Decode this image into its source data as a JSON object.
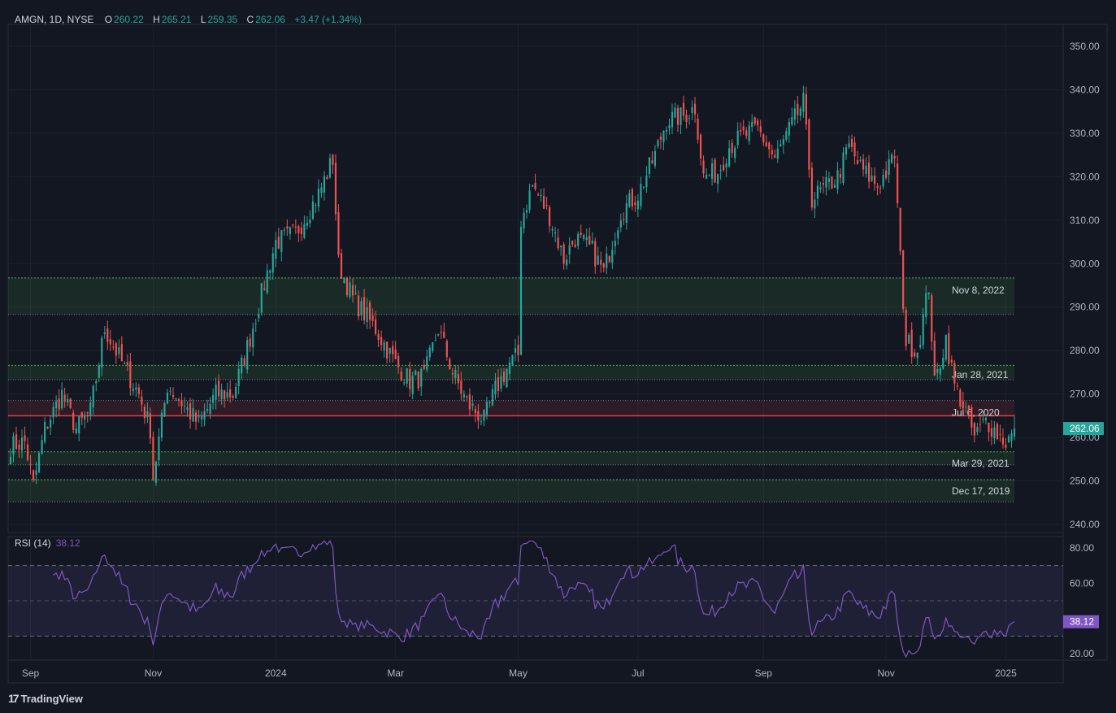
{
  "header": {
    "symbol": "AMGN, 1D, NYSE",
    "o_label": "O",
    "o_value": "260.22",
    "h_label": "H",
    "h_value": "265.21",
    "l_label": "L",
    "l_value": "259.35",
    "c_label": "C",
    "c_value": "262.06",
    "change": "+3.47 (+1.34%)"
  },
  "rsi_header": {
    "label": "RSI (14)",
    "value": "38.12"
  },
  "branding": {
    "logo_mark": "17",
    "name": "TradingView"
  },
  "colors": {
    "bg": "#131722",
    "up": "#26a69a",
    "down": "#ef5350",
    "rsi": "#7e57c2",
    "zone_fill": "#1b3a2c",
    "zone_line": "#4caf50",
    "red_line": "#f23645",
    "grid": "#1e222d"
  },
  "chart_data": [
    {
      "type": "candlestick",
      "ylim": [
        240,
        355
      ],
      "yticks": [
        "240.00",
        "250.00",
        "260.00",
        "270.00",
        "280.00",
        "290.00",
        "300.00",
        "310.00",
        "320.00",
        "330.00",
        "340.00",
        "350.00"
      ],
      "xticks": [
        {
          "label": "Sep",
          "idx": 7
        },
        {
          "label": "Nov",
          "idx": 50
        },
        {
          "label": "2024",
          "idx": 93
        },
        {
          "label": "Mar",
          "idx": 135
        },
        {
          "label": "May",
          "idx": 178
        },
        {
          "label": "Jul",
          "idx": 220
        },
        {
          "label": "Sep",
          "idx": 264
        },
        {
          "label": "Nov",
          "idx": 307
        },
        {
          "label": "2025",
          "idx": 349
        }
      ],
      "last_price": "262.06",
      "keypoints": [
        [
          0,
          258
        ],
        [
          5,
          259
        ],
        [
          8,
          249
        ],
        [
          12,
          262
        ],
        [
          18,
          270
        ],
        [
          23,
          262
        ],
        [
          28,
          266
        ],
        [
          33,
          285
        ],
        [
          40,
          276
        ],
        [
          45,
          270
        ],
        [
          49,
          262
        ],
        [
          50,
          251
        ],
        [
          55,
          272
        ],
        [
          60,
          268
        ],
        [
          66,
          263
        ],
        [
          72,
          270
        ],
        [
          78,
          270
        ],
        [
          84,
          283
        ],
        [
          88,
          293
        ],
        [
          93,
          305
        ],
        [
          100,
          307
        ],
        [
          108,
          316
        ],
        [
          113,
          324
        ],
        [
          115,
          300
        ],
        [
          120,
          292
        ],
        [
          128,
          285
        ],
        [
          135,
          277
        ],
        [
          140,
          273
        ],
        [
          145,
          274
        ],
        [
          150,
          285
        ],
        [
          155,
          275
        ],
        [
          160,
          268
        ],
        [
          166,
          264
        ],
        [
          170,
          271
        ],
        [
          175,
          277
        ],
        [
          178,
          279
        ],
        [
          179,
          310
        ],
        [
          183,
          318
        ],
        [
          189,
          311
        ],
        [
          194,
          301
        ],
        [
          198,
          306
        ],
        [
          204,
          303
        ],
        [
          208,
          298
        ],
        [
          214,
          312
        ],
        [
          220,
          316
        ],
        [
          226,
          325
        ],
        [
          230,
          333
        ],
        [
          236,
          334
        ],
        [
          240,
          336
        ],
        [
          243,
          320
        ],
        [
          248,
          321
        ],
        [
          252,
          327
        ],
        [
          256,
          329
        ],
        [
          262,
          331
        ],
        [
          268,
          324
        ],
        [
          274,
          332
        ],
        [
          278,
          337
        ],
        [
          281,
          315
        ],
        [
          285,
          317
        ],
        [
          290,
          320
        ],
        [
          294,
          327
        ],
        [
          298,
          322
        ],
        [
          304,
          318
        ],
        [
          308,
          322
        ],
        [
          310,
          325
        ],
        [
          312,
          301
        ],
        [
          314,
          282
        ],
        [
          318,
          280
        ],
        [
          322,
          295
        ],
        [
          324,
          272
        ],
        [
          328,
          283
        ],
        [
          331,
          272
        ],
        [
          335,
          266
        ],
        [
          338,
          260
        ],
        [
          342,
          264
        ],
        [
          346,
          261
        ],
        [
          349,
          259
        ],
        [
          352,
          261
        ]
      ],
      "zones": [
        {
          "top": 296.7,
          "bottom": 288.3,
          "label": "Nov 8, 2022"
        },
        {
          "top": 276.6,
          "bottom": 273.3,
          "label": "Jan 28, 2021"
        },
        {
          "top": 268.5,
          "bottom": 264.8,
          "label": "Jul 6, 2020",
          "red_line": 265.0
        },
        {
          "top": 256.7,
          "bottom": 253.7,
          "label": "Mar 29, 2021"
        },
        {
          "top": 250.3,
          "bottom": 245.2,
          "label": "Dec 17, 2019"
        }
      ]
    },
    {
      "type": "line",
      "name": "RSI (14)",
      "ylim": [
        15,
        85
      ],
      "yticks": [
        "20.00",
        "60.00",
        "80.00"
      ],
      "bands": [
        70,
        50,
        30
      ],
      "last_value": "38.12"
    }
  ]
}
